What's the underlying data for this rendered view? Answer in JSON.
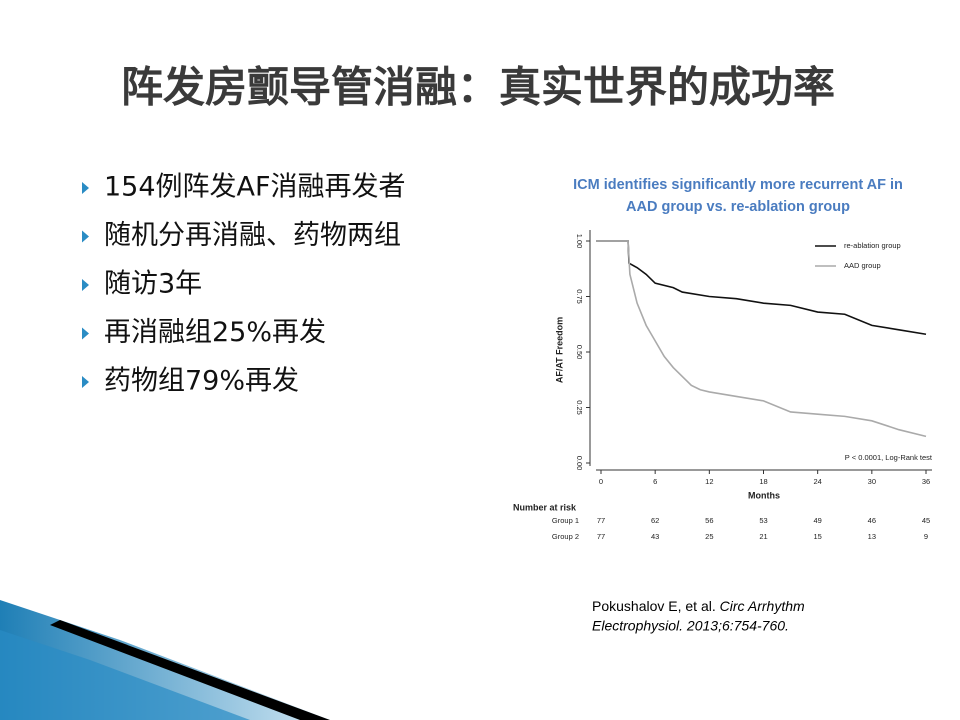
{
  "header": {
    "title": "阵发房颤导管消融：真实世界的成功率"
  },
  "bullets": [
    "154例阵发AF消融再发者",
    "随机分再消融、药物两组",
    "随访3年",
    "再消融组25%再发",
    "药物组79%再发"
  ],
  "chart_data": {
    "type": "line",
    "title": [
      "ICM identifies significantly more recurrent AF in",
      "AAD group vs. re-ablation group"
    ],
    "y_label": "AF/AT Freedom",
    "x_label": "Months",
    "xlim": [
      0,
      36
    ],
    "xticks": [
      0,
      6,
      12,
      18,
      24,
      30,
      36
    ],
    "ylim": [
      0,
      1
    ],
    "yticks": [
      {
        "value": 0,
        "label": "0.00"
      },
      {
        "value": 0.25,
        "label": "0.25"
      },
      {
        "value": 0.5,
        "label": "0.50"
      },
      {
        "value": 0.75,
        "label": "0.75"
      },
      {
        "value": 1,
        "label": "1.00"
      }
    ],
    "series": [
      {
        "name": "re-ablation group",
        "color": "#111111",
        "x": [
          -3,
          3,
          3.1,
          4,
          5,
          6,
          8,
          9,
          12,
          15,
          18,
          21,
          24,
          27,
          30,
          33,
          36
        ],
        "values": [
          1,
          1,
          0.9,
          0.88,
          0.85,
          0.81,
          0.79,
          0.77,
          0.75,
          0.74,
          0.72,
          0.71,
          0.68,
          0.67,
          0.62,
          0.6,
          0.58
        ]
      },
      {
        "name": "AAD group",
        "color": "#aaaaaa",
        "x": [
          -3,
          3,
          3.2,
          4,
          5,
          6,
          7,
          8,
          9,
          10,
          11,
          12,
          15,
          18,
          21,
          24,
          27,
          30,
          33,
          36
        ],
        "values": [
          1,
          1,
          0.85,
          0.72,
          0.62,
          0.55,
          0.48,
          0.43,
          0.39,
          0.35,
          0.33,
          0.32,
          0.3,
          0.28,
          0.23,
          0.22,
          0.21,
          0.19,
          0.15,
          0.12
        ]
      }
    ],
    "annotation": "P < 0.0001, Log-Rank test",
    "risk_table": {
      "title": "Number at risk",
      "rows": [
        {
          "label": "Group 1",
          "values": [
            77,
            62,
            56,
            53,
            49,
            46,
            45
          ]
        },
        {
          "label": "Group 2",
          "values": [
            77,
            43,
            25,
            21,
            15,
            13,
            9
          ]
        }
      ]
    }
  },
  "citation": [
    "Pokushalov E, et al.",
    "Circ Arrhythm",
    "Electrophysiol. 2013;6:754-760."
  ]
}
